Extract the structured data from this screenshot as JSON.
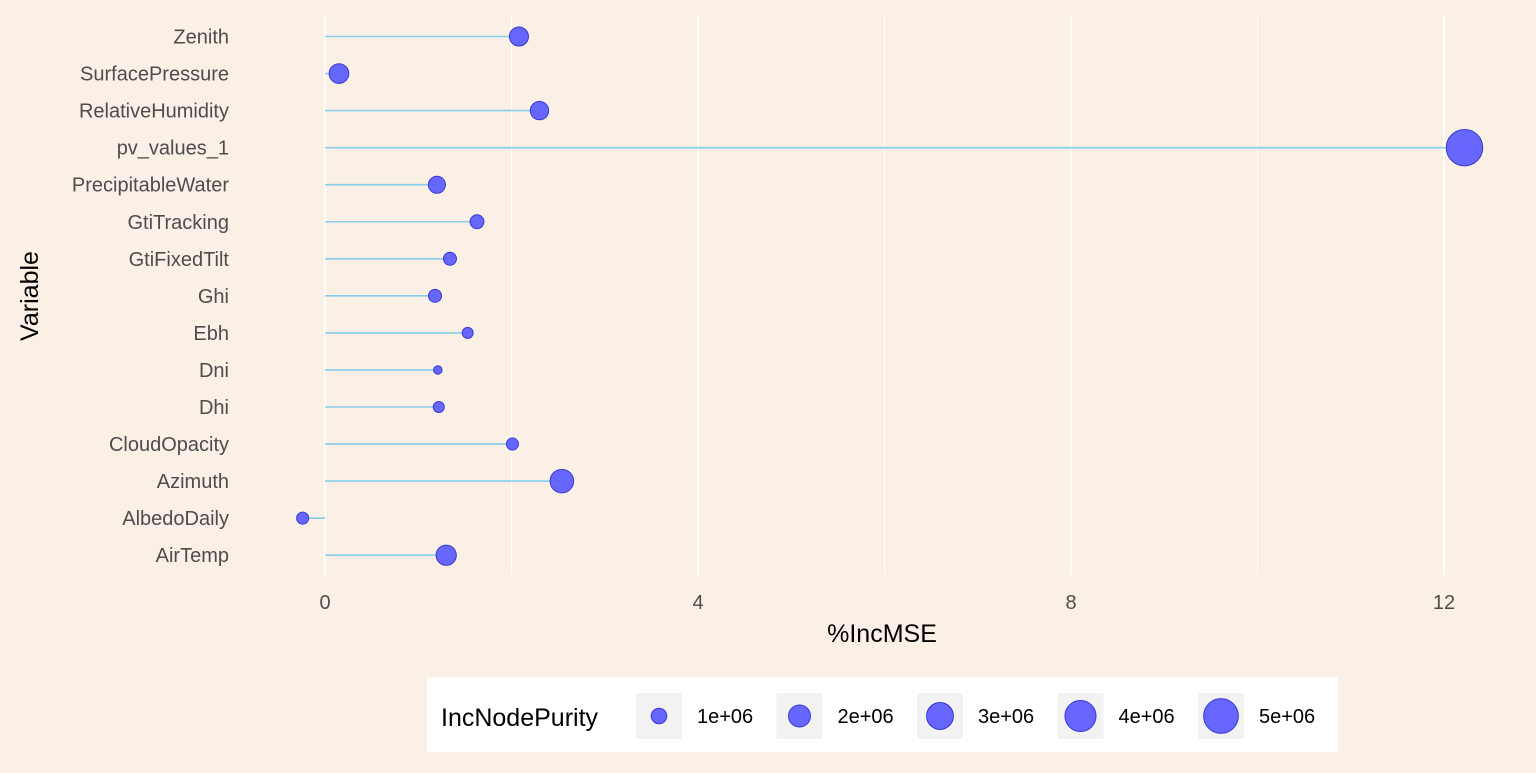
{
  "chart_data": {
    "type": "lollipop",
    "title": "",
    "xlabel": "%IncMSE",
    "ylabel": "Variable",
    "xlim": [
      -1,
      12.7
    ],
    "x_ticks": [
      0,
      4,
      8,
      12
    ],
    "x_tick_labels": [
      "0",
      "4",
      "8",
      "12"
    ],
    "grid": true,
    "categories": [
      "Zenith",
      "SurfacePressure",
      "RelativeHumidity",
      "pv_values_1",
      "PrecipitableWater",
      "GtiTracking",
      "GtiFixedTilt",
      "Ghi",
      "Ebh",
      "Dni",
      "Dhi",
      "CloudOpacity",
      "Azimuth",
      "AlbedoDaily",
      "AirTemp"
    ],
    "series": [
      {
        "x_name": "%IncMSE",
        "values": [
          2.08,
          0.15,
          2.3,
          12.22,
          1.2,
          1.63,
          1.34,
          1.18,
          1.53,
          1.21,
          1.22,
          2.01,
          2.54,
          -0.24,
          1.3
        ],
        "size_name": "IncNodePurity",
        "sizes": [
          1500000,
          1600000,
          1400000,
          5500000,
          1200000,
          800000,
          700000,
          700000,
          500000,
          300000,
          500000,
          600000,
          2300000,
          600000,
          1700000
        ]
      }
    ],
    "legend": {
      "title": "IncNodePurity",
      "placement": "bottom",
      "entries": [
        {
          "label": "1e+06",
          "value": 1000000
        },
        {
          "label": "2e+06",
          "value": 2000000
        },
        {
          "label": "3e+06",
          "value": 3000000
        },
        {
          "label": "4e+06",
          "value": 4000000
        },
        {
          "label": "5e+06",
          "value": 5000000
        }
      ]
    },
    "colors": {
      "background": "#FAF0E6",
      "segment": "#87CEEB",
      "point_fill": "#5F5FFF",
      "point_stroke": "#3A3AD0",
      "grid": "#FFFFFF",
      "legend_bg": "#FFFFFF",
      "legend_key_bg": "#F2F2F2"
    }
  }
}
